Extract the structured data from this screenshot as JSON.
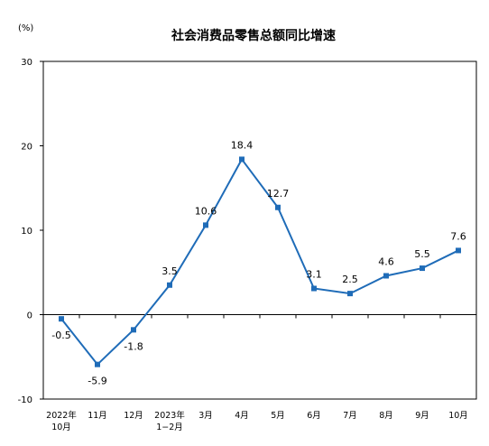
{
  "chart_data": {
    "type": "line",
    "title": "社会消费品零售总额同比增速",
    "unit_label": "(%)",
    "categories": [
      [
        "2022年",
        "10月"
      ],
      [
        "11月"
      ],
      [
        "12月"
      ],
      [
        "2023年",
        "1−2月"
      ],
      [
        "3月"
      ],
      [
        "4月"
      ],
      [
        "5月"
      ],
      [
        "6月"
      ],
      [
        "7月"
      ],
      [
        "8月"
      ],
      [
        "9月"
      ],
      [
        "10月"
      ]
    ],
    "series": [
      {
        "values": [
          -0.5,
          -5.9,
          -1.8,
          3.5,
          10.6,
          18.4,
          12.7,
          3.1,
          2.5,
          4.6,
          5.5,
          7.6
        ]
      }
    ],
    "data_labels": [
      "-0.5",
      "-5.9",
      "-1.8",
      "3.5",
      "10.6",
      "18.4",
      "12.7",
      "3.1",
      "2.5",
      "4.6",
      "5.5",
      "7.6"
    ],
    "ylim": [
      -10,
      30
    ],
    "yticks": [
      -10,
      0,
      10,
      20,
      30
    ],
    "ytick_labels": [
      "-10",
      "0",
      "10",
      "20",
      "30"
    ],
    "grid": false,
    "line_color": "#1F6CB8"
  }
}
